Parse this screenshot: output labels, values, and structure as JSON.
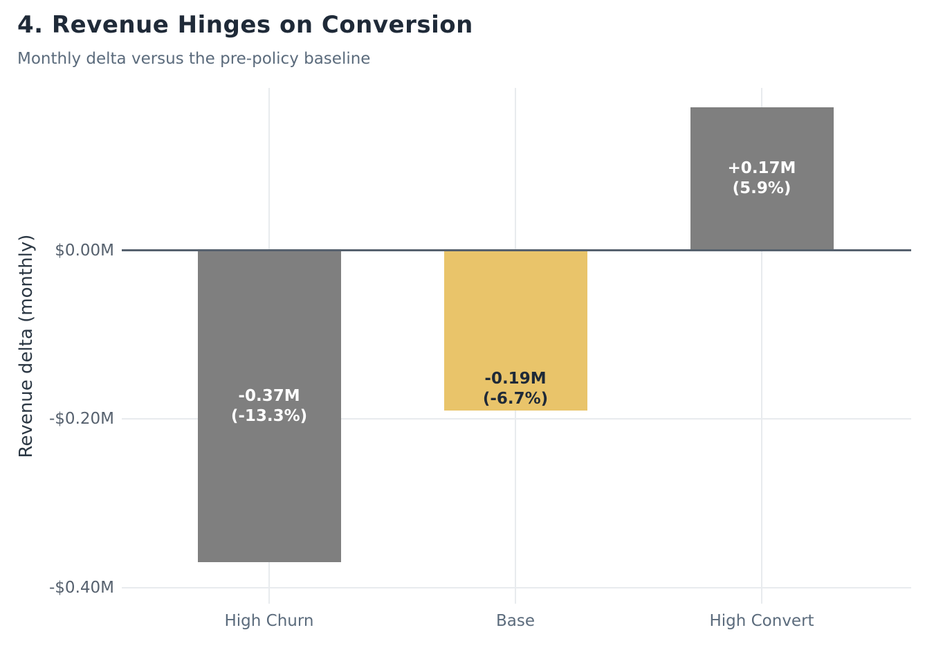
{
  "header": {
    "title": "4. Revenue Hinges on Conversion",
    "subtitle": "Monthly delta versus the pre-policy baseline"
  },
  "chart_data": {
    "type": "bar",
    "title": "4. Revenue Hinges on Conversion",
    "subtitle": "Monthly delta versus the pre-policy baseline",
    "categories": [
      "High Churn",
      "Base",
      "High Convert"
    ],
    "values": [
      -0.37,
      -0.19,
      0.17
    ],
    "pct_change": [
      -13.3,
      -6.7,
      5.9
    ],
    "bar_labels": [
      {
        "line1": "-0.37M",
        "line2": "(-13.3%)"
      },
      {
        "line1": "-0.19M",
        "line2": "(-6.7%)"
      },
      {
        "line1": "+0.17M",
        "line2": "(5.9%)"
      }
    ],
    "xlabel": "",
    "ylabel": "Revenue delta (monthly)",
    "yticks": [
      {
        "value": 0.0,
        "label": "$0.00M"
      },
      {
        "value": -0.2,
        "label": "-$0.20M"
      },
      {
        "value": -0.4,
        "label": "-$0.40M"
      }
    ],
    "ylim": [
      -0.419,
      0.193
    ],
    "grid": true,
    "legend": "none",
    "colors": {
      "bar_fills": [
        "#7f7f7f",
        "#e9c46a",
        "#7f7f7f"
      ],
      "bar_label_text": [
        "#ffffff",
        "#1f2a38",
        "#ffffff"
      ],
      "zero_line": "#56616e",
      "gridline": "#e8ebee",
      "title_text": "#1f2a38",
      "subtitle_text": "#5b6b7c",
      "axis_label_text": "#2c3844",
      "tick_text": "#56616e"
    }
  }
}
